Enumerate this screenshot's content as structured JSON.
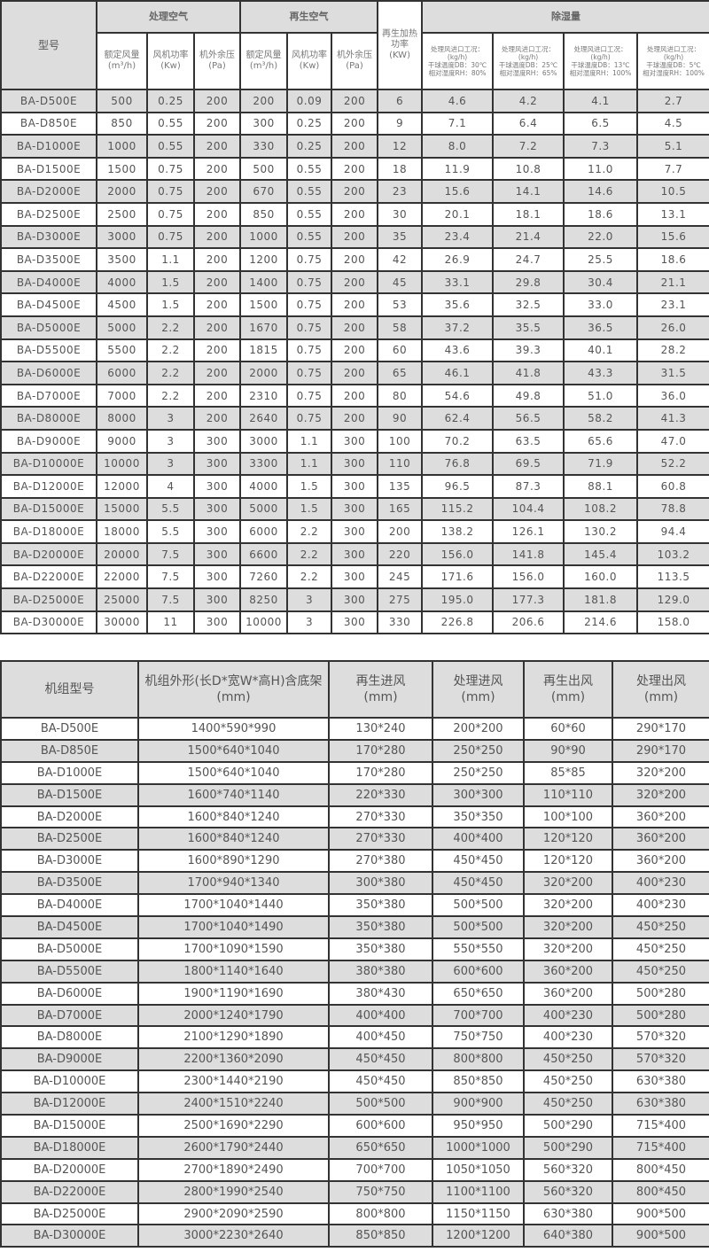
{
  "table1": {
    "headers": {
      "model": "型号",
      "process_air": "处理空气",
      "regen_air": "再生空气",
      "regen_heat": "再生加热\n功率\n(KW)",
      "dehum": "除湿量",
      "airflow": "额定风量\n(m³/h)",
      "fan_power": "风机功率\n(Kw)",
      "pressure": "机外余压\n(Pa)",
      "cond1": "处理风进口工况：\n(kg/h)\n干球温度DB：30℃\n相对湿度RH：80%",
      "cond2": "处理风进口工况：\n(kg/h)\n干球温度DB：25℃\n相对湿度RH：65%",
      "cond3": "处理风进口工况：\n(kg/h)\n干球温度DB：13℃\n相对湿度RH：100%",
      "cond4": "处理风进口工况：\n(kg/h)\n干球温度DB：5℃\n相对湿度RH：100%"
    },
    "rows": [
      [
        "BA-D500E",
        "500",
        "0.25",
        "200",
        "200",
        "0.09",
        "200",
        "6",
        "4.6",
        "4.2",
        "4.1",
        "2.7"
      ],
      [
        "BA-D850E",
        "850",
        "0.55",
        "200",
        "300",
        "0.25",
        "200",
        "9",
        "7.1",
        "6.4",
        "6.5",
        "4.5"
      ],
      [
        "BA-D1000E",
        "1000",
        "0.55",
        "200",
        "330",
        "0.25",
        "200",
        "12",
        "8.0",
        "7.2",
        "7.3",
        "5.1"
      ],
      [
        "BA-D1500E",
        "1500",
        "0.75",
        "200",
        "500",
        "0.55",
        "200",
        "18",
        "11.9",
        "10.8",
        "11.0",
        "7.7"
      ],
      [
        "BA-D2000E",
        "2000",
        "0.75",
        "200",
        "670",
        "0.55",
        "200",
        "23",
        "15.6",
        "14.1",
        "14.6",
        "10.5"
      ],
      [
        "BA-D2500E",
        "2500",
        "0.75",
        "200",
        "850",
        "0.55",
        "200",
        "30",
        "20.1",
        "18.1",
        "18.6",
        "13.1"
      ],
      [
        "BA-D3000E",
        "3000",
        "0.75",
        "200",
        "1000",
        "0.55",
        "200",
        "35",
        "23.4",
        "21.4",
        "22.0",
        "15.6"
      ],
      [
        "BA-D3500E",
        "3500",
        "1.1",
        "200",
        "1200",
        "0.75",
        "200",
        "42",
        "26.9",
        "24.7",
        "25.5",
        "18.6"
      ],
      [
        "BA-D4000E",
        "4000",
        "1.5",
        "200",
        "1400",
        "0.75",
        "200",
        "45",
        "33.1",
        "29.8",
        "30.4",
        "21.1"
      ],
      [
        "BA-D4500E",
        "4500",
        "1.5",
        "200",
        "1500",
        "0.75",
        "200",
        "53",
        "35.6",
        "32.5",
        "33.0",
        "23.1"
      ],
      [
        "BA-D5000E",
        "5000",
        "2.2",
        "200",
        "1670",
        "0.75",
        "200",
        "58",
        "37.2",
        "35.5",
        "36.5",
        "26.0"
      ],
      [
        "BA-D5500E",
        "5500",
        "2.2",
        "200",
        "1815",
        "0.75",
        "200",
        "60",
        "43.6",
        "39.3",
        "40.1",
        "28.2"
      ],
      [
        "BA-D6000E",
        "6000",
        "2.2",
        "200",
        "2000",
        "0.75",
        "200",
        "65",
        "46.1",
        "41.8",
        "43.3",
        "31.5"
      ],
      [
        "BA-D7000E",
        "7000",
        "2.2",
        "200",
        "2310",
        "0.75",
        "200",
        "80",
        "54.6",
        "49.8",
        "51.0",
        "36.0"
      ],
      [
        "BA-D8000E",
        "8000",
        "3",
        "200",
        "2640",
        "0.75",
        "200",
        "90",
        "62.4",
        "56.5",
        "58.2",
        "41.3"
      ],
      [
        "BA-D9000E",
        "9000",
        "3",
        "300",
        "3000",
        "1.1",
        "300",
        "100",
        "70.2",
        "63.5",
        "65.6",
        "47.0"
      ],
      [
        "BA-D10000E",
        "10000",
        "3",
        "300",
        "3300",
        "1.1",
        "300",
        "110",
        "76.8",
        "69.5",
        "71.9",
        "52.2"
      ],
      [
        "BA-D12000E",
        "12000",
        "4",
        "300",
        "4000",
        "1.5",
        "300",
        "135",
        "96.5",
        "87.3",
        "88.1",
        "60.8"
      ],
      [
        "BA-D15000E",
        "15000",
        "5.5",
        "300",
        "5000",
        "1.5",
        "300",
        "165",
        "115.2",
        "104.4",
        "108.2",
        "78.8"
      ],
      [
        "BA-D18000E",
        "18000",
        "5.5",
        "300",
        "6000",
        "2.2",
        "300",
        "200",
        "138.2",
        "126.1",
        "130.2",
        "94.4"
      ],
      [
        "BA-D20000E",
        "20000",
        "7.5",
        "300",
        "6600",
        "2.2",
        "300",
        "220",
        "156.0",
        "141.8",
        "145.4",
        "103.2"
      ],
      [
        "BA-D22000E",
        "22000",
        "7.5",
        "300",
        "7260",
        "2.2",
        "300",
        "245",
        "171.6",
        "156.0",
        "160.0",
        "113.5"
      ],
      [
        "BA-D25000E",
        "25000",
        "7.5",
        "300",
        "8250",
        "3",
        "300",
        "275",
        "195.0",
        "177.3",
        "181.8",
        "129.0"
      ],
      [
        "BA-D30000E",
        "30000",
        "11",
        "300",
        "10000",
        "3",
        "300",
        "330",
        "226.8",
        "206.6",
        "214.6",
        "158.0"
      ]
    ]
  },
  "table2": {
    "headers": [
      "机组型号",
      "机组外形(长D*宽W*高H)含底架\n(mm)",
      "再生进风\n(mm)",
      "处理进风\n(mm)",
      "再生出风\n(mm)",
      "处理出风\n(mm)"
    ],
    "rows": [
      [
        "BA-D500E",
        "1400*590*990",
        "130*240",
        "200*200",
        "60*60",
        "290*170"
      ],
      [
        "BA-D850E",
        "1500*640*1040",
        "170*280",
        "250*250",
        "90*90",
        "290*170"
      ],
      [
        "BA-D1000E",
        "1500*640*1040",
        "170*280",
        "250*250",
        "85*85",
        "320*200"
      ],
      [
        "BA-D1500E",
        "1600*740*1140",
        "220*330",
        "300*300",
        "110*110",
        "320*200"
      ],
      [
        "BA-D2000E",
        "1600*840*1240",
        "270*330",
        "350*350",
        "100*100",
        "360*200"
      ],
      [
        "BA-D2500E",
        "1600*840*1240",
        "270*330",
        "400*400",
        "120*120",
        "360*200"
      ],
      [
        "BA-D3000E",
        "1600*890*1290",
        "270*380",
        "450*450",
        "120*120",
        "360*200"
      ],
      [
        "BA-D3500E",
        "1700*940*1340",
        "300*380",
        "450*450",
        "320*200",
        "400*230"
      ],
      [
        "BA-D4000E",
        "1700*1040*1440",
        "350*380",
        "500*500",
        "320*200",
        "400*230"
      ],
      [
        "BA-D4500E",
        "1700*1040*1490",
        "350*380",
        "500*500",
        "320*200",
        "450*250"
      ],
      [
        "BA-D5000E",
        "1700*1090*1590",
        "350*380",
        "550*550",
        "320*200",
        "450*250"
      ],
      [
        "BA-D5500E",
        "1800*1140*1640",
        "380*380",
        "600*600",
        "360*200",
        "450*250"
      ],
      [
        "BA-D6000E",
        "1900*1190*1690",
        "380*430",
        "650*650",
        "360*200",
        "500*280"
      ],
      [
        "BA-D7000E",
        "2000*1240*1790",
        "400*400",
        "700*700",
        "400*230",
        "500*280"
      ],
      [
        "BA-D8000E",
        "2100*1290*1890",
        "400*450",
        "750*750",
        "400*230",
        "570*320"
      ],
      [
        "BA-D9000E",
        "2200*1360*2090",
        "450*450",
        "800*800",
        "450*250",
        "570*320"
      ],
      [
        "BA-D10000E",
        "2300*1440*2190",
        "450*450",
        "850*850",
        "450*250",
        "630*380"
      ],
      [
        "BA-D12000E",
        "2400*1510*2240",
        "500*500",
        "900*900",
        "450*250",
        "630*380"
      ],
      [
        "BA-D15000E",
        "2500*1690*2290",
        "600*600",
        "950*950",
        "500*290",
        "715*400"
      ],
      [
        "BA-D18000E",
        "2600*1790*2440",
        "650*650",
        "1000*1000",
        "500*290",
        "715*400"
      ],
      [
        "BA-D20000E",
        "2700*1890*2490",
        "700*700",
        "1050*1050",
        "560*320",
        "800*450"
      ],
      [
        "BA-D22000E",
        "2800*1990*2540",
        "750*750",
        "1100*1100",
        "560*320",
        "800*450"
      ],
      [
        "BA-D25000E",
        "2900*2090*2590",
        "800*800",
        "1150*1150",
        "630*380",
        "900*500"
      ],
      [
        "BA-D30000E",
        "3000*2230*2640",
        "850*850",
        "1200*1200",
        "640*380",
        "900*500"
      ]
    ]
  }
}
